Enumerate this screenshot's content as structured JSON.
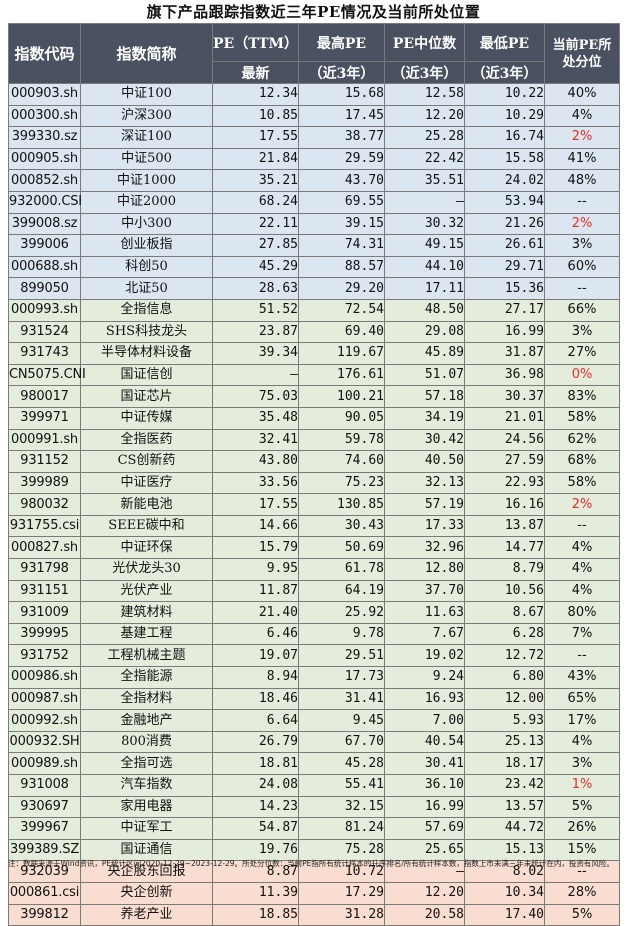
{
  "title": "旗下产品跟踪指数近三年PE情况及当前所处位置",
  "headers": {
    "code": "指数代码",
    "name": "指数简称",
    "pe_ttm_top": "PE（TTM）",
    "pe_ttm_bottom": "最新",
    "max_top": "最高PE",
    "max_bottom": "（近3年）",
    "median_top": "PE中位数",
    "median_bottom": "（近3年）",
    "min_top": "最低PE",
    "min_bottom": "（近3年）",
    "pct_line1": "当前PE所",
    "pct_line2": "处分位"
  },
  "rows": [
    {
      "code": "000903.sh",
      "name": "中证100",
      "pe": "12.34",
      "max": "15.68",
      "median": "12.58",
      "min": "10.22",
      "pct": "40%",
      "red": false,
      "group": "blue"
    },
    {
      "code": "000300.sh",
      "name": "沪深300",
      "pe": "10.85",
      "max": "17.45",
      "median": "12.20",
      "min": "10.29",
      "pct": "4%",
      "red": false,
      "group": "blue"
    },
    {
      "code": "399330.sz",
      "name": "深证100",
      "pe": "17.55",
      "max": "38.77",
      "median": "25.28",
      "min": "16.74",
      "pct": "2%",
      "red": true,
      "group": "blue"
    },
    {
      "code": "000905.sh",
      "name": "中证500",
      "pe": "21.84",
      "max": "29.59",
      "median": "22.42",
      "min": "15.58",
      "pct": "41%",
      "red": false,
      "group": "blue"
    },
    {
      "code": "000852.sh",
      "name": "中证1000",
      "pe": "35.21",
      "max": "43.70",
      "median": "35.51",
      "min": "24.02",
      "pct": "48%",
      "red": false,
      "group": "blue"
    },
    {
      "code": "932000.CSI",
      "name": "中证2000",
      "pe": "68.24",
      "max": "69.55",
      "median": "–",
      "min": "53.94",
      "pct": "--",
      "red": false,
      "group": "blue"
    },
    {
      "code": "399008.sz",
      "name": "中小300",
      "pe": "22.11",
      "max": "39.15",
      "median": "30.32",
      "min": "21.26",
      "pct": "2%",
      "red": true,
      "group": "blue"
    },
    {
      "code": "399006",
      "name": "创业板指",
      "pe": "27.85",
      "max": "74.31",
      "median": "49.15",
      "min": "26.61",
      "pct": "3%",
      "red": false,
      "group": "blue"
    },
    {
      "code": "000688.sh",
      "name": "科创50",
      "pe": "45.29",
      "max": "88.57",
      "median": "44.10",
      "min": "29.71",
      "pct": "60%",
      "red": false,
      "group": "blue"
    },
    {
      "code": "899050",
      "name": "北证50",
      "pe": "28.63",
      "max": "29.20",
      "median": "17.11",
      "min": "15.36",
      "pct": "--",
      "red": false,
      "group": "blue"
    },
    {
      "code": "000993.sh",
      "name": "全指信息",
      "pe": "51.52",
      "max": "72.54",
      "median": "48.50",
      "min": "27.17",
      "pct": "66%",
      "red": false,
      "group": "green"
    },
    {
      "code": "931524",
      "name": "SHS科技龙头",
      "pe": "23.87",
      "max": "69.40",
      "median": "29.08",
      "min": "16.99",
      "pct": "3%",
      "red": false,
      "group": "green"
    },
    {
      "code": "931743",
      "name": "半导体材料设备",
      "pe": "39.34",
      "max": "119.67",
      "median": "45.89",
      "min": "31.87",
      "pct": "27%",
      "red": false,
      "group": "green"
    },
    {
      "code": "CN5075.CNI",
      "name": "国证信创",
      "pe": "–",
      "max": "176.61",
      "median": "51.07",
      "min": "36.98",
      "pct": "0%",
      "red": true,
      "group": "green"
    },
    {
      "code": "980017",
      "name": "国证芯片",
      "pe": "75.03",
      "max": "100.21",
      "median": "57.18",
      "min": "30.37",
      "pct": "83%",
      "red": false,
      "group": "green"
    },
    {
      "code": "399971",
      "name": "中证传媒",
      "pe": "35.48",
      "max": "90.05",
      "median": "34.19",
      "min": "21.01",
      "pct": "58%",
      "red": false,
      "group": "green"
    },
    {
      "code": "000991.sh",
      "name": "全指医药",
      "pe": "32.41",
      "max": "59.78",
      "median": "30.42",
      "min": "24.56",
      "pct": "62%",
      "red": false,
      "group": "green"
    },
    {
      "code": "931152",
      "name": "CS创新药",
      "pe": "43.80",
      "max": "74.60",
      "median": "40.50",
      "min": "27.59",
      "pct": "68%",
      "red": false,
      "group": "green"
    },
    {
      "code": "399989",
      "name": "中证医疗",
      "pe": "33.56",
      "max": "75.23",
      "median": "32.13",
      "min": "22.93",
      "pct": "58%",
      "red": false,
      "group": "green"
    },
    {
      "code": "980032",
      "name": "新能电池",
      "pe": "17.55",
      "max": "130.85",
      "median": "57.19",
      "min": "16.16",
      "pct": "2%",
      "red": true,
      "group": "green"
    },
    {
      "code": "931755.csi",
      "name": "SEEE碳中和",
      "pe": "14.66",
      "max": "30.43",
      "median": "17.33",
      "min": "13.87",
      "pct": "--",
      "red": false,
      "group": "green"
    },
    {
      "code": "000827.sh",
      "name": "中证环保",
      "pe": "15.79",
      "max": "50.69",
      "median": "32.96",
      "min": "14.77",
      "pct": "4%",
      "red": false,
      "group": "green"
    },
    {
      "code": "931798",
      "name": "光伏龙头30",
      "pe": "9.95",
      "max": "61.78",
      "median": "12.80",
      "min": "8.79",
      "pct": "4%",
      "red": false,
      "group": "green"
    },
    {
      "code": "931151",
      "name": "光伏产业",
      "pe": "11.87",
      "max": "64.19",
      "median": "37.70",
      "min": "10.56",
      "pct": "4%",
      "red": false,
      "group": "green"
    },
    {
      "code": "931009",
      "name": "建筑材料",
      "pe": "21.40",
      "max": "25.92",
      "median": "11.63",
      "min": "8.67",
      "pct": "80%",
      "red": false,
      "group": "green"
    },
    {
      "code": "399995",
      "name": "基建工程",
      "pe": "6.46",
      "max": "9.78",
      "median": "7.67",
      "min": "6.28",
      "pct": "7%",
      "red": false,
      "group": "green"
    },
    {
      "code": "931752",
      "name": "工程机械主题",
      "pe": "19.07",
      "max": "29.51",
      "median": "19.02",
      "min": "12.72",
      "pct": "--",
      "red": false,
      "group": "green"
    },
    {
      "code": "000986.sh",
      "name": "全指能源",
      "pe": "8.94",
      "max": "17.73",
      "median": "9.24",
      "min": "6.80",
      "pct": "43%",
      "red": false,
      "group": "green"
    },
    {
      "code": "000987.sh",
      "name": "全指材料",
      "pe": "18.46",
      "max": "31.41",
      "median": "16.93",
      "min": "12.00",
      "pct": "65%",
      "red": false,
      "group": "green"
    },
    {
      "code": "000992.sh",
      "name": "金融地产",
      "pe": "6.64",
      "max": "9.45",
      "median": "7.00",
      "min": "5.93",
      "pct": "17%",
      "red": false,
      "group": "green"
    },
    {
      "code": "000932.SH",
      "name": "800消费",
      "pe": "26.79",
      "max": "67.70",
      "median": "40.54",
      "min": "25.13",
      "pct": "4%",
      "red": false,
      "group": "green"
    },
    {
      "code": "000989.sh",
      "name": "全指可选",
      "pe": "18.81",
      "max": "45.28",
      "median": "30.41",
      "min": "18.17",
      "pct": "3%",
      "red": false,
      "group": "green"
    },
    {
      "code": "931008",
      "name": "汽车指数",
      "pe": "24.08",
      "max": "55.41",
      "median": "36.10",
      "min": "23.42",
      "pct": "1%",
      "red": true,
      "group": "green"
    },
    {
      "code": "930697",
      "name": "家用电器",
      "pe": "14.23",
      "max": "32.15",
      "median": "16.99",
      "min": "13.57",
      "pct": "5%",
      "red": false,
      "group": "green"
    },
    {
      "code": "399967",
      "name": "中证军工",
      "pe": "54.87",
      "max": "81.24",
      "median": "57.69",
      "min": "44.72",
      "pct": "26%",
      "red": false,
      "group": "green"
    },
    {
      "code": "399389.SZ",
      "name": "国证通信",
      "pe": "19.76",
      "max": "75.28",
      "median": "25.65",
      "min": "15.13",
      "pct": "15%",
      "red": false,
      "group": "green"
    },
    {
      "code": "932039",
      "name": "央企股东回报",
      "pe": "8.87",
      "max": "10.72",
      "median": "–",
      "min": "8.02",
      "pct": "--",
      "red": false,
      "group": "pink"
    },
    {
      "code": "000861.csi",
      "name": "央企创新",
      "pe": "11.39",
      "max": "17.29",
      "median": "12.20",
      "min": "10.34",
      "pct": "28%",
      "red": false,
      "group": "pink"
    },
    {
      "code": "399812",
      "name": "养老产业",
      "pe": "18.85",
      "max": "31.28",
      "median": "20.58",
      "min": "17.40",
      "pct": "5%",
      "red": false,
      "group": "pink"
    }
  ],
  "footnote": "注：数据来源于Wind资讯，PE统计区间2020-12-29~2023-12-29。所处分位数：当前PE指所有统计样本的升序排名/所有统计样本数，指数上市未满三年未统计在内，投资有风险。"
}
